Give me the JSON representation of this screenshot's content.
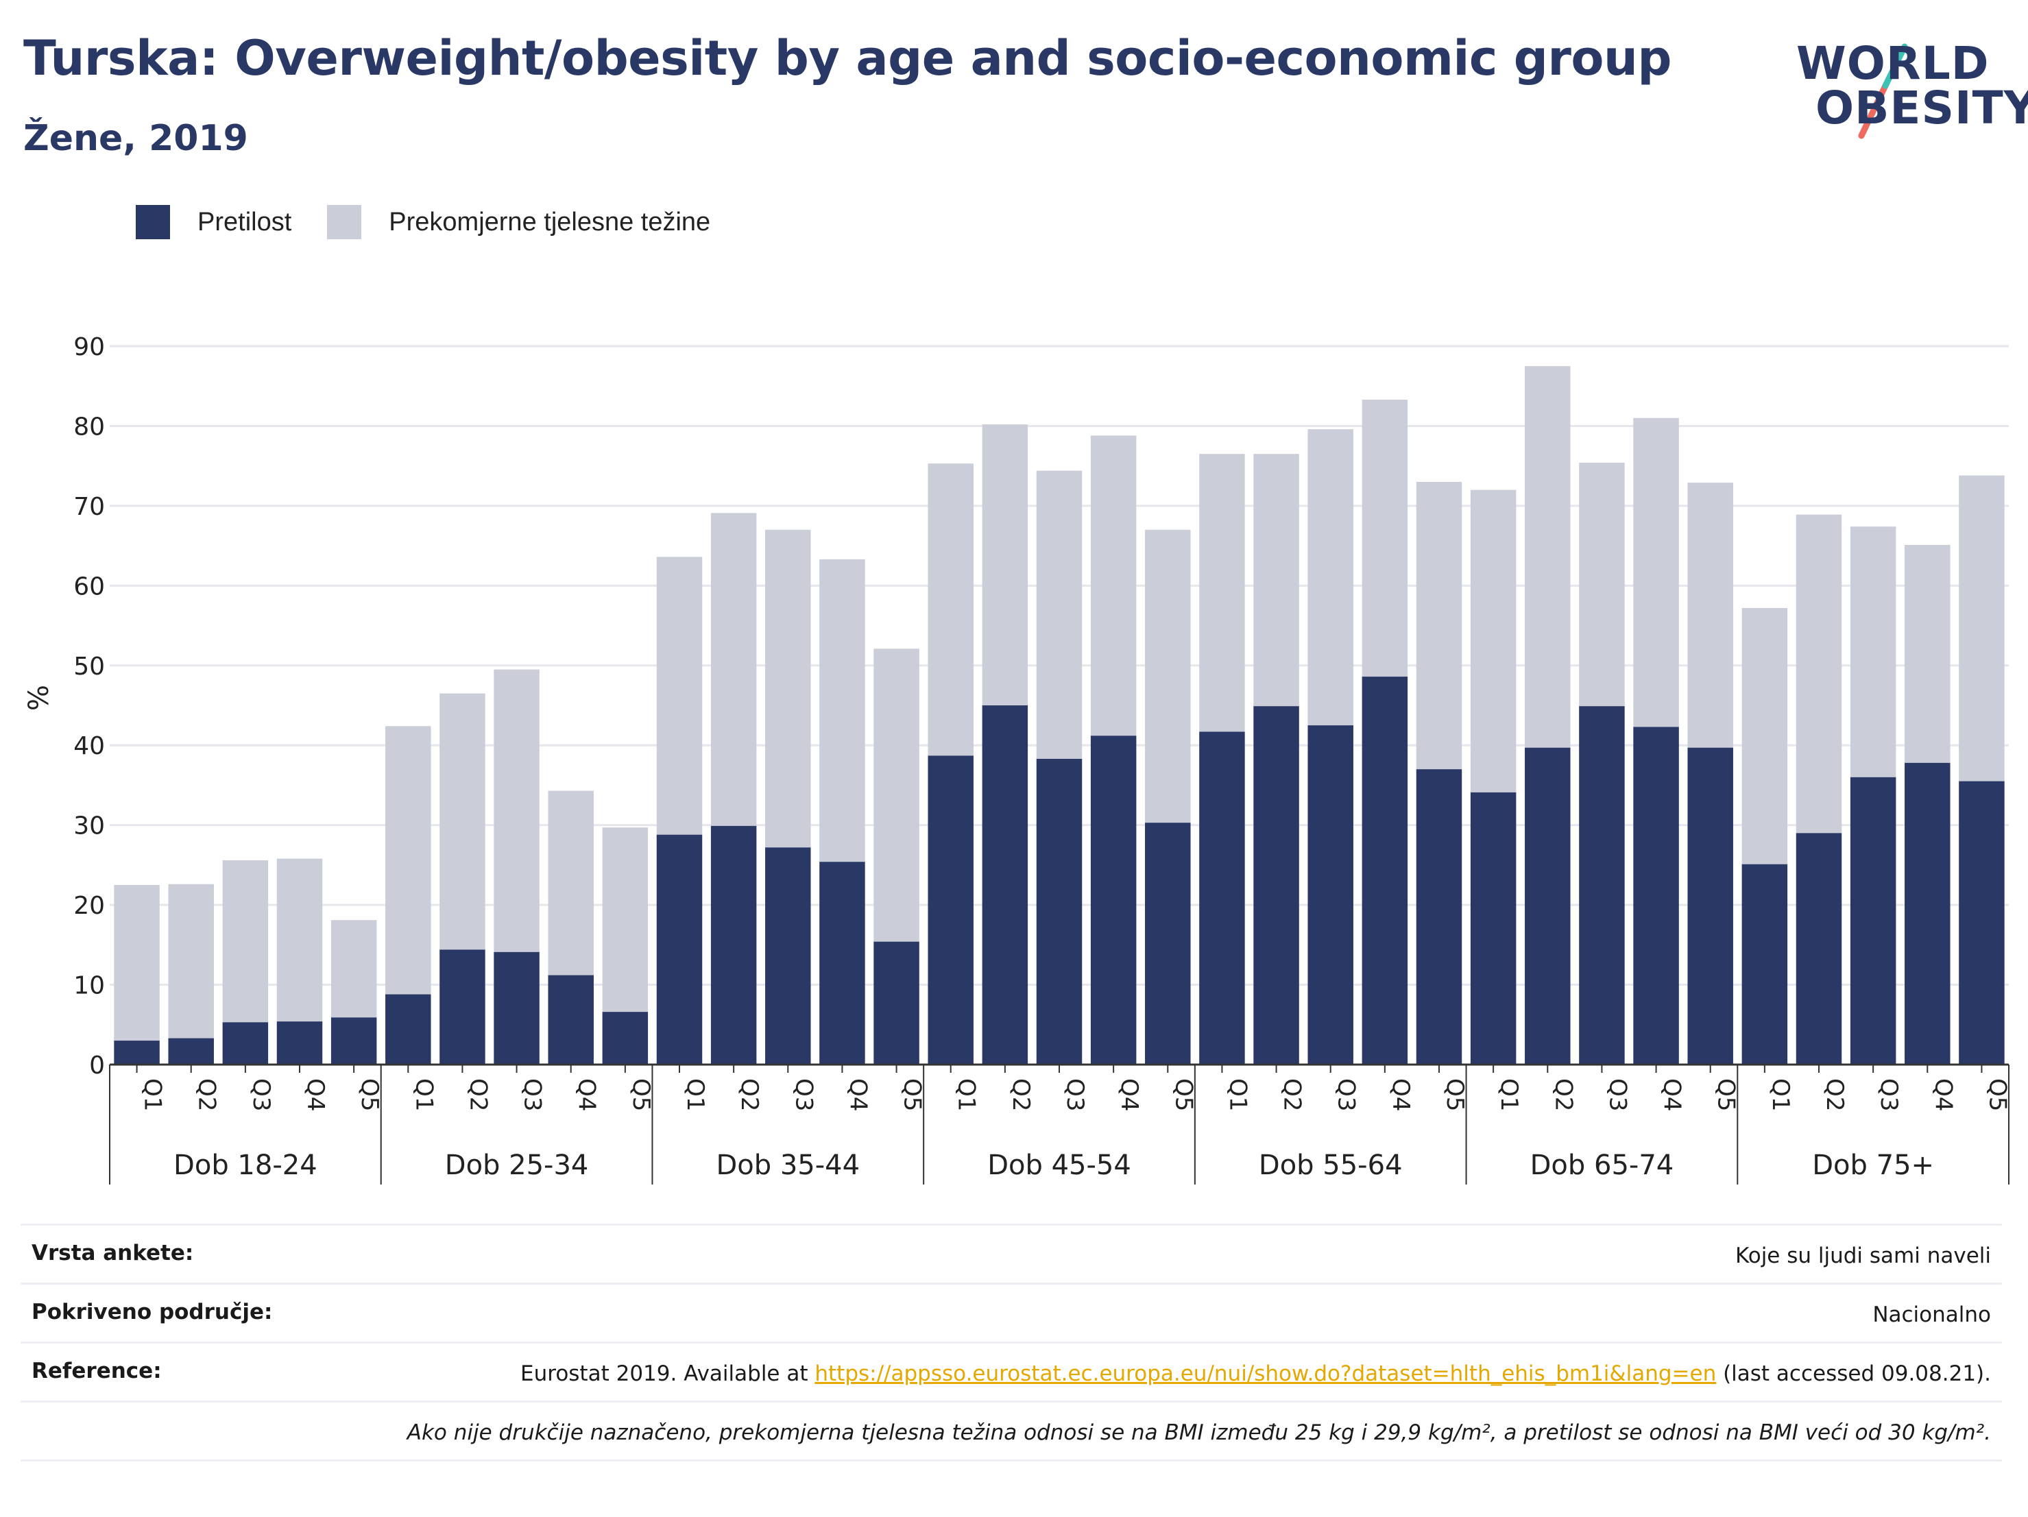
{
  "header": {
    "title": "Turska: Overweight/obesity by age and socio-economic group",
    "subtitle": "Žene, 2019",
    "logo_line1": "WORLD",
    "logo_line2": "OBESITY"
  },
  "colors": {
    "obesity": "#2a3866",
    "overweight": "#cbcdd8",
    "grid": "#e6e6ec",
    "logo_teal": "#3cc1b4",
    "logo_coral": "#ee6a5f",
    "link": "#e5a800"
  },
  "chart_data": {
    "type": "bar",
    "stacked": true,
    "ylabel": "%",
    "ylim": [
      0,
      90
    ],
    "yticks": [
      0,
      10,
      20,
      30,
      40,
      50,
      60,
      70,
      80,
      90
    ],
    "grid": true,
    "legend_position": "top-left",
    "groups": [
      "Dob 18-24",
      "Dob 25-34",
      "Dob 35-44",
      "Dob 45-54",
      "Dob 55-64",
      "Dob 65-74",
      "Dob 75+"
    ],
    "subcategories": [
      "Q1",
      "Q2",
      "Q3",
      "Q4",
      "Q5"
    ],
    "series": [
      {
        "name": "Pretilost",
        "values": [
          [
            3.0,
            3.3,
            5.3,
            5.4,
            5.9
          ],
          [
            8.8,
            14.4,
            14.1,
            11.2,
            6.6
          ],
          [
            28.8,
            29.9,
            27.2,
            25.4,
            15.4
          ],
          [
            38.7,
            45.0,
            38.3,
            41.2,
            30.3
          ],
          [
            41.7,
            44.9,
            42.5,
            48.6,
            37.0
          ],
          [
            34.1,
            39.7,
            44.9,
            42.3,
            39.7
          ],
          [
            25.1,
            29.0,
            36.0,
            37.8,
            35.5
          ]
        ]
      },
      {
        "name": "Prekomjerne tjelesne težine",
        "totals": [
          [
            22.5,
            22.6,
            25.6,
            25.8,
            18.1
          ],
          [
            42.4,
            46.5,
            49.5,
            34.3,
            29.7
          ],
          [
            63.6,
            69.1,
            67.0,
            63.3,
            52.1
          ],
          [
            75.3,
            80.2,
            74.4,
            78.8,
            67.0
          ],
          [
            76.5,
            76.5,
            79.6,
            83.3,
            73.0
          ],
          [
            72.0,
            87.5,
            75.4,
            81.0,
            72.9
          ],
          [
            57.2,
            68.9,
            67.4,
            65.1,
            73.8
          ]
        ]
      }
    ]
  },
  "info": {
    "survey_label": "Vrsta ankete:",
    "survey_value": "Koje su ljudi sami naveli",
    "area_label": "Pokriveno područje:",
    "area_value": "Nacionalno",
    "ref_label": "Reference:",
    "ref_prefix": "Eurostat 2019. Available at ",
    "ref_link": "https://appsso.eurostat.ec.europa.eu/nui/show.do?dataset=hlth_ehis_bm1i&lang=en",
    "ref_suffix": " (last accessed 09.08.21).",
    "note": "Ako nije drukčije naznačeno, prekomjerna tjelesna težina odnosi se na BMI između 25 kg i 29,9 kg/m², a pretilost se odnosi na BMI veći od 30 kg/m²."
  }
}
